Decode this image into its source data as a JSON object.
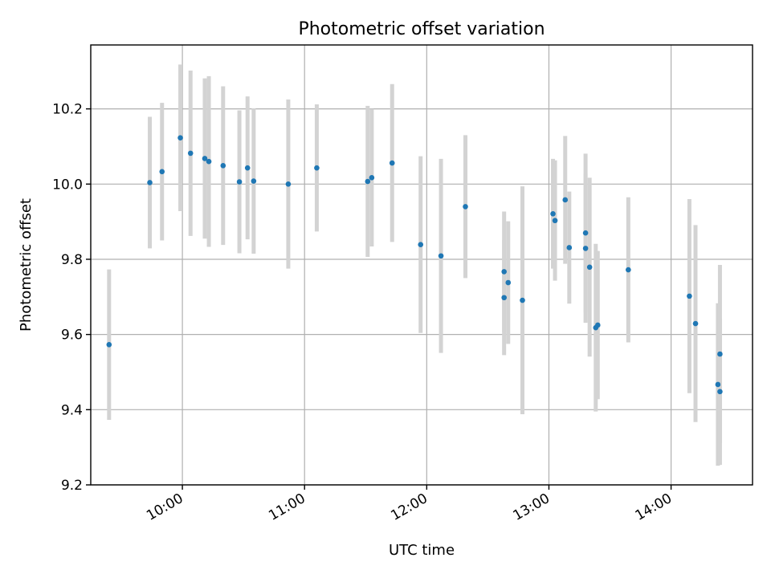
{
  "chart_data": {
    "type": "scatter",
    "title": "Photometric offset variation",
    "xlabel": "UTC time",
    "ylabel": "Photometric offset",
    "x_unit": "UTC time (HH:MM)",
    "xlim": [
      "09:15",
      "14:40"
    ],
    "ylim": [
      9.2,
      10.37
    ],
    "x_ticks": [
      "10:00",
      "11:00",
      "12:00",
      "13:00",
      "14:00"
    ],
    "y_ticks": [
      "9.2",
      "9.4",
      "9.6",
      "9.8",
      "10.0",
      "10.2"
    ],
    "grid": true,
    "marker_color": "#1f77b4",
    "errorbar_color": "#d3d3d3",
    "points": [
      {
        "x": "09:24",
        "y": 9.573,
        "err": 0.2
      },
      {
        "x": "09:44",
        "y": 10.004,
        "err": 0.175
      },
      {
        "x": "09:50",
        "y": 10.033,
        "err": 0.183
      },
      {
        "x": "09:59",
        "y": 10.123,
        "err": 0.195
      },
      {
        "x": "10:04",
        "y": 10.082,
        "err": 0.22
      },
      {
        "x": "10:11",
        "y": 10.068,
        "err": 0.213
      },
      {
        "x": "10:13",
        "y": 10.06,
        "err": 0.227
      },
      {
        "x": "10:20",
        "y": 10.049,
        "err": 0.211
      },
      {
        "x": "10:28",
        "y": 10.006,
        "err": 0.19
      },
      {
        "x": "10:32",
        "y": 10.043,
        "err": 0.19
      },
      {
        "x": "10:35",
        "y": 10.008,
        "err": 0.193
      },
      {
        "x": "10:52",
        "y": 10.0,
        "err": 0.225
      },
      {
        "x": "11:06",
        "y": 10.043,
        "err": 0.169
      },
      {
        "x": "11:31",
        "y": 10.007,
        "err": 0.201
      },
      {
        "x": "11:33",
        "y": 10.017,
        "err": 0.183
      },
      {
        "x": "11:43",
        "y": 10.056,
        "err": 0.21
      },
      {
        "x": "11:57",
        "y": 9.839,
        "err": 0.235
      },
      {
        "x": "12:07",
        "y": 9.809,
        "err": 0.258
      },
      {
        "x": "12:19",
        "y": 9.94,
        "err": 0.19
      },
      {
        "x": "12:38",
        "y": 9.767,
        "err": 0.16
      },
      {
        "x": "12:38",
        "y": 9.698,
        "err": 0.153
      },
      {
        "x": "12:40",
        "y": 9.738,
        "err": 0.163
      },
      {
        "x": "12:47",
        "y": 9.691,
        "err": 0.303
      },
      {
        "x": "13:02",
        "y": 9.921,
        "err": 0.146
      },
      {
        "x": "13:03",
        "y": 9.903,
        "err": 0.16
      },
      {
        "x": "13:08",
        "y": 9.958,
        "err": 0.17
      },
      {
        "x": "13:10",
        "y": 9.831,
        "err": 0.149
      },
      {
        "x": "13:18",
        "y": 9.87,
        "err": 0.211
      },
      {
        "x": "13:18",
        "y": 9.829,
        "err": 0.198
      },
      {
        "x": "13:20",
        "y": 9.779,
        "err": 0.238
      },
      {
        "x": "13:23",
        "y": 9.618,
        "err": 0.223
      },
      {
        "x": "13:24",
        "y": 9.625,
        "err": 0.197
      },
      {
        "x": "13:39",
        "y": 9.772,
        "err": 0.193
      },
      {
        "x": "14:09",
        "y": 9.702,
        "err": 0.258
      },
      {
        "x": "14:12",
        "y": 9.629,
        "err": 0.262
      },
      {
        "x": "14:23",
        "y": 9.467,
        "err": 0.216
      },
      {
        "x": "14:24",
        "y": 9.448,
        "err": 0.195
      },
      {
        "x": "14:24",
        "y": 9.548,
        "err": 0.237
      }
    ]
  }
}
